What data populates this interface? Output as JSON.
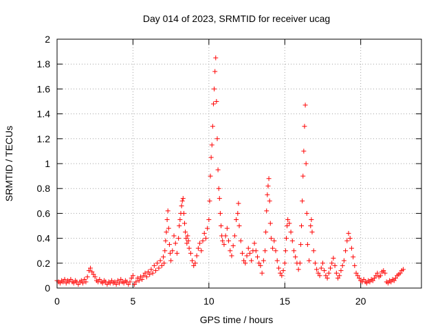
{
  "chart_data": {
    "type": "scatter",
    "title": "Day 014 of 2023, SRMTID for receiver ucag",
    "xlabel": "GPS time / hours",
    "ylabel": "SRMTID / TECUs",
    "xlim": [
      0,
      24
    ],
    "ylim": [
      0,
      2
    ],
    "x_ticks": [
      0,
      5,
      10,
      15,
      20
    ],
    "y_ticks": [
      0,
      0.2,
      0.4,
      0.6,
      0.8,
      1,
      1.2,
      1.4,
      1.6,
      1.8,
      2
    ],
    "x_tick_labels": [
      "0",
      "5",
      "10",
      "15",
      "20"
    ],
    "y_tick_labels": [
      "0",
      "0.2",
      "0.4",
      "0.6",
      "0.8",
      "1",
      "1.2",
      "1.4",
      "1.6",
      "1.8",
      "2"
    ],
    "grid": true,
    "marker": "+",
    "color": "#ff0000",
    "series": [
      {
        "name": "SRMTID",
        "points": [
          [
            0.0,
            0.06
          ],
          [
            0.1,
            0.05
          ],
          [
            0.2,
            0.04
          ],
          [
            0.3,
            0.06
          ],
          [
            0.4,
            0.05
          ],
          [
            0.5,
            0.07
          ],
          [
            0.6,
            0.04
          ],
          [
            0.7,
            0.06
          ],
          [
            0.8,
            0.05
          ],
          [
            0.9,
            0.07
          ],
          [
            1.0,
            0.05
          ],
          [
            1.1,
            0.04
          ],
          [
            1.2,
            0.06
          ],
          [
            1.3,
            0.05
          ],
          [
            1.4,
            0.03
          ],
          [
            1.5,
            0.05
          ],
          [
            1.6,
            0.06
          ],
          [
            1.7,
            0.04
          ],
          [
            1.8,
            0.07
          ],
          [
            1.9,
            0.05
          ],
          [
            2.0,
            0.09
          ],
          [
            2.1,
            0.14
          ],
          [
            2.2,
            0.16
          ],
          [
            2.3,
            0.13
          ],
          [
            2.4,
            0.11
          ],
          [
            2.5,
            0.09
          ],
          [
            2.6,
            0.06
          ],
          [
            2.7,
            0.05
          ],
          [
            2.8,
            0.07
          ],
          [
            2.9,
            0.05
          ],
          [
            3.0,
            0.04
          ],
          [
            3.1,
            0.06
          ],
          [
            3.2,
            0.05
          ],
          [
            3.3,
            0.03
          ],
          [
            3.4,
            0.05
          ],
          [
            3.5,
            0.04
          ],
          [
            3.6,
            0.06
          ],
          [
            3.7,
            0.04
          ],
          [
            3.8,
            0.05
          ],
          [
            3.9,
            0.03
          ],
          [
            4.0,
            0.06
          ],
          [
            4.1,
            0.04
          ],
          [
            4.2,
            0.07
          ],
          [
            4.3,
            0.05
          ],
          [
            4.4,
            0.04
          ],
          [
            4.5,
            0.06
          ],
          [
            4.6,
            0.05
          ],
          [
            4.7,
            0.03
          ],
          [
            4.8,
            0.05
          ],
          [
            4.9,
            0.08
          ],
          [
            5.0,
            0.1
          ],
          [
            5.1,
            0.03
          ],
          [
            5.2,
            0.05
          ],
          [
            5.3,
            0.08
          ],
          [
            5.4,
            0.06
          ],
          [
            5.5,
            0.09
          ],
          [
            5.6,
            0.07
          ],
          [
            5.7,
            0.1
          ],
          [
            5.8,
            0.12
          ],
          [
            5.9,
            0.09
          ],
          [
            6.0,
            0.13
          ],
          [
            6.1,
            0.11
          ],
          [
            6.2,
            0.15
          ],
          [
            6.3,
            0.12
          ],
          [
            6.4,
            0.18
          ],
          [
            6.5,
            0.14
          ],
          [
            6.6,
            0.2
          ],
          [
            6.7,
            0.16
          ],
          [
            6.8,
            0.22
          ],
          [
            6.9,
            0.18
          ],
          [
            7.0,
            0.25
          ],
          [
            7.05,
            0.2
          ],
          [
            7.1,
            0.3
          ],
          [
            7.15,
            0.38
          ],
          [
            7.2,
            0.45
          ],
          [
            7.25,
            0.55
          ],
          [
            7.3,
            0.62
          ],
          [
            7.35,
            0.48
          ],
          [
            7.4,
            0.35
          ],
          [
            7.45,
            0.28
          ],
          [
            7.5,
            0.22
          ],
          [
            7.6,
            0.3
          ],
          [
            7.7,
            0.42
          ],
          [
            7.8,
            0.36
          ],
          [
            7.9,
            0.28
          ],
          [
            8.0,
            0.4
          ],
          [
            8.05,
            0.5
          ],
          [
            8.1,
            0.55
          ],
          [
            8.15,
            0.6
          ],
          [
            8.2,
            0.66
          ],
          [
            8.25,
            0.7
          ],
          [
            8.3,
            0.72
          ],
          [
            8.35,
            0.6
          ],
          [
            8.4,
            0.52
          ],
          [
            8.45,
            0.45
          ],
          [
            8.5,
            0.4
          ],
          [
            8.55,
            0.36
          ],
          [
            8.6,
            0.42
          ],
          [
            8.65,
            0.38
          ],
          [
            8.7,
            0.32
          ],
          [
            8.8,
            0.28
          ],
          [
            8.9,
            0.22
          ],
          [
            9.0,
            0.18
          ],
          [
            9.1,
            0.2
          ],
          [
            9.2,
            0.26
          ],
          [
            9.3,
            0.32
          ],
          [
            9.4,
            0.36
          ],
          [
            9.5,
            0.3
          ],
          [
            9.6,
            0.38
          ],
          [
            9.7,
            0.44
          ],
          [
            9.8,
            0.4
          ],
          [
            9.9,
            0.48
          ],
          [
            10.0,
            0.55
          ],
          [
            10.05,
            0.7
          ],
          [
            10.1,
            0.9
          ],
          [
            10.15,
            1.05
          ],
          [
            10.2,
            1.15
          ],
          [
            10.25,
            1.3
          ],
          [
            10.3,
            1.48
          ],
          [
            10.35,
            1.6
          ],
          [
            10.4,
            1.74
          ],
          [
            10.45,
            1.85
          ],
          [
            10.5,
            1.5
          ],
          [
            10.55,
            1.2
          ],
          [
            10.6,
            0.95
          ],
          [
            10.65,
            0.8
          ],
          [
            10.7,
            0.72
          ],
          [
            10.75,
            0.6
          ],
          [
            10.8,
            0.5
          ],
          [
            10.85,
            0.42
          ],
          [
            10.9,
            0.38
          ],
          [
            11.0,
            0.35
          ],
          [
            11.1,
            0.42
          ],
          [
            11.2,
            0.48
          ],
          [
            11.3,
            0.38
          ],
          [
            11.4,
            0.3
          ],
          [
            11.5,
            0.26
          ],
          [
            11.6,
            0.34
          ],
          [
            11.7,
            0.42
          ],
          [
            11.8,
            0.55
          ],
          [
            11.9,
            0.6
          ],
          [
            11.95,
            0.68
          ],
          [
            12.0,
            0.5
          ],
          [
            12.1,
            0.38
          ],
          [
            12.2,
            0.28
          ],
          [
            12.3,
            0.22
          ],
          [
            12.4,
            0.2
          ],
          [
            12.5,
            0.26
          ],
          [
            12.6,
            0.32
          ],
          [
            12.7,
            0.28
          ],
          [
            12.8,
            0.22
          ],
          [
            12.9,
            0.3
          ],
          [
            13.0,
            0.36
          ],
          [
            13.1,
            0.3
          ],
          [
            13.2,
            0.25
          ],
          [
            13.3,
            0.2
          ],
          [
            13.4,
            0.18
          ],
          [
            13.5,
            0.12
          ],
          [
            13.6,
            0.22
          ],
          [
            13.7,
            0.3
          ],
          [
            13.75,
            0.45
          ],
          [
            13.8,
            0.62
          ],
          [
            13.85,
            0.75
          ],
          [
            13.9,
            0.82
          ],
          [
            13.95,
            0.88
          ],
          [
            14.0,
            0.7
          ],
          [
            14.05,
            0.52
          ],
          [
            14.1,
            0.4
          ],
          [
            14.2,
            0.32
          ],
          [
            14.3,
            0.38
          ],
          [
            14.4,
            0.3
          ],
          [
            14.5,
            0.22
          ],
          [
            14.6,
            0.16
          ],
          [
            14.7,
            0.12
          ],
          [
            14.8,
            0.1
          ],
          [
            14.9,
            0.14
          ],
          [
            15.0,
            0.2
          ],
          [
            15.05,
            0.3
          ],
          [
            15.1,
            0.4
          ],
          [
            15.15,
            0.5
          ],
          [
            15.2,
            0.55
          ],
          [
            15.3,
            0.52
          ],
          [
            15.4,
            0.45
          ],
          [
            15.5,
            0.38
          ],
          [
            15.6,
            0.3
          ],
          [
            15.7,
            0.25
          ],
          [
            15.8,
            0.2
          ],
          [
            15.9,
            0.15
          ],
          [
            16.0,
            0.2
          ],
          [
            16.05,
            0.35
          ],
          [
            16.1,
            0.5
          ],
          [
            16.15,
            0.7
          ],
          [
            16.2,
            0.9
          ],
          [
            16.25,
            1.1
          ],
          [
            16.3,
            1.3
          ],
          [
            16.35,
            1.47
          ],
          [
            16.4,
            1.0
          ],
          [
            16.45,
            0.6
          ],
          [
            16.5,
            0.35
          ],
          [
            16.6,
            0.22
          ],
          [
            16.7,
            0.5
          ],
          [
            16.75,
            0.55
          ],
          [
            16.8,
            0.45
          ],
          [
            16.9,
            0.3
          ],
          [
            17.0,
            0.2
          ],
          [
            17.1,
            0.15
          ],
          [
            17.2,
            0.12
          ],
          [
            17.3,
            0.1
          ],
          [
            17.4,
            0.16
          ],
          [
            17.5,
            0.2
          ],
          [
            17.6,
            0.14
          ],
          [
            17.7,
            0.1
          ],
          [
            17.8,
            0.08
          ],
          [
            17.9,
            0.12
          ],
          [
            18.0,
            0.16
          ],
          [
            18.1,
            0.2
          ],
          [
            18.2,
            0.24
          ],
          [
            18.3,
            0.18
          ],
          [
            18.4,
            0.12
          ],
          [
            18.5,
            0.08
          ],
          [
            18.6,
            0.1
          ],
          [
            18.7,
            0.14
          ],
          [
            18.8,
            0.18
          ],
          [
            18.9,
            0.22
          ],
          [
            19.0,
            0.3
          ],
          [
            19.1,
            0.38
          ],
          [
            19.2,
            0.44
          ],
          [
            19.3,
            0.4
          ],
          [
            19.4,
            0.32
          ],
          [
            19.5,
            0.25
          ],
          [
            19.6,
            0.18
          ],
          [
            19.7,
            0.12
          ],
          [
            19.8,
            0.1
          ],
          [
            19.9,
            0.08
          ],
          [
            20.0,
            0.06
          ],
          [
            20.1,
            0.05
          ],
          [
            20.2,
            0.07
          ],
          [
            20.3,
            0.05
          ],
          [
            20.4,
            0.04
          ],
          [
            20.5,
            0.06
          ],
          [
            20.6,
            0.05
          ],
          [
            20.7,
            0.07
          ],
          [
            20.8,
            0.06
          ],
          [
            20.9,
            0.08
          ],
          [
            21.0,
            0.1
          ],
          [
            21.1,
            0.12
          ],
          [
            21.2,
            0.09
          ],
          [
            21.3,
            0.1
          ],
          [
            21.4,
            0.13
          ],
          [
            21.5,
            0.14
          ],
          [
            21.6,
            0.12
          ],
          [
            21.7,
            0.05
          ],
          [
            21.8,
            0.04
          ],
          [
            21.9,
            0.06
          ],
          [
            22.0,
            0.05
          ],
          [
            22.1,
            0.07
          ],
          [
            22.2,
            0.06
          ],
          [
            22.3,
            0.08
          ],
          [
            22.4,
            0.1
          ],
          [
            22.5,
            0.11
          ],
          [
            22.6,
            0.12
          ],
          [
            22.7,
            0.14
          ],
          [
            22.8,
            0.15
          ]
        ]
      }
    ]
  }
}
